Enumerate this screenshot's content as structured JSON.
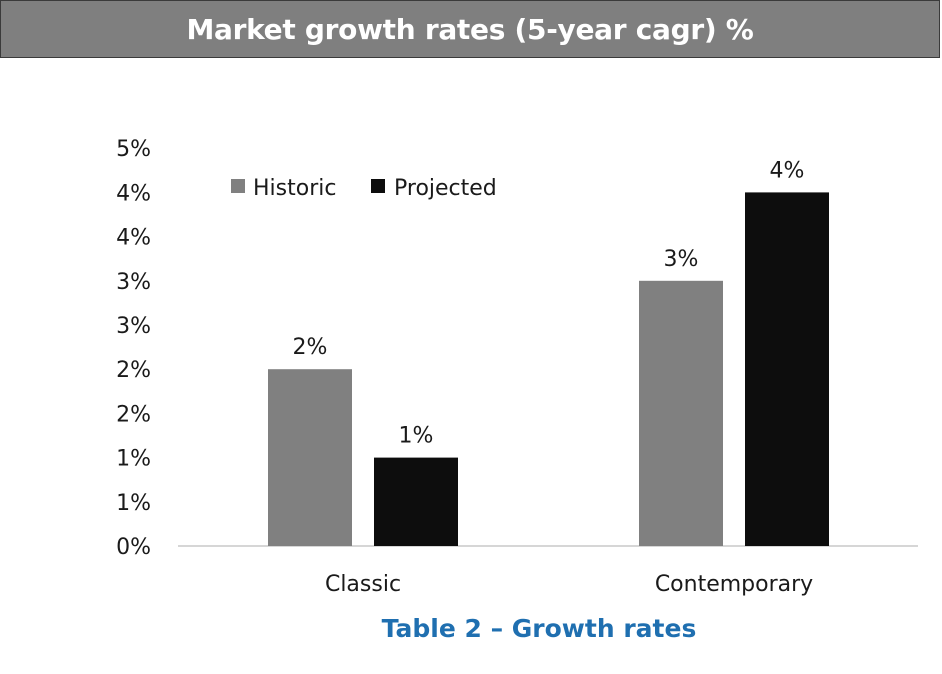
{
  "header": {
    "title": "Market growth rates (5-year cagr) %"
  },
  "caption": "Table 2 – Growth rates",
  "colors": {
    "historic": "#808080",
    "projected": "#0d0d0d",
    "caption": "#1f6fb0",
    "header_bg": "#7f7f7f"
  },
  "chart_data": {
    "type": "bar",
    "title": "Market growth rates (5-year cagr) %",
    "categories": [
      "Classic",
      "Contemporary"
    ],
    "series": [
      {
        "name": "Historic",
        "values": [
          2,
          3
        ],
        "labels": [
          "2%",
          "3%"
        ]
      },
      {
        "name": "Projected",
        "values": [
          1,
          4
        ],
        "labels": [
          "1%",
          "4%"
        ]
      }
    ],
    "yticks": [
      "0%",
      "1%",
      "1%",
      "2%",
      "2%",
      "3%",
      "3%",
      "4%",
      "4%",
      "5%"
    ],
    "ylim": [
      0,
      4.5
    ],
    "grid": false,
    "legend": "top-left"
  }
}
